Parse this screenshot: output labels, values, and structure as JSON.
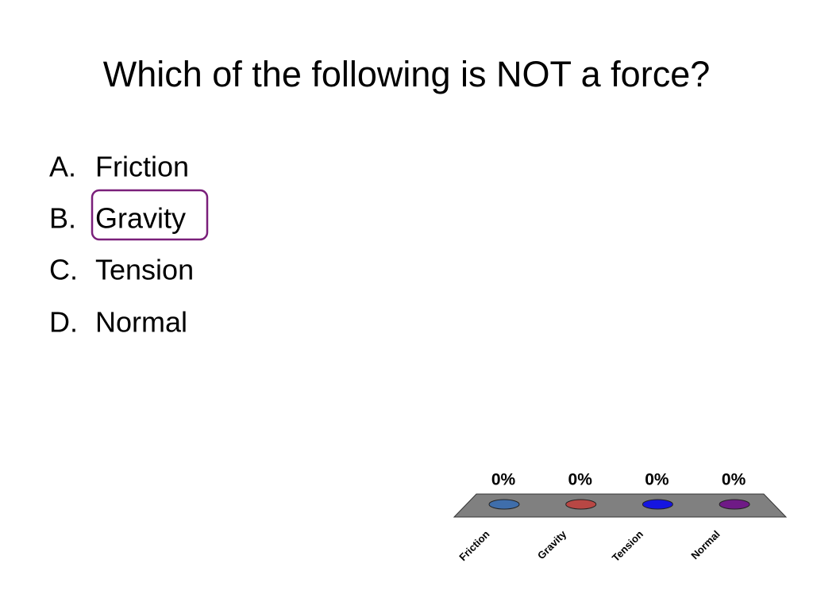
{
  "title": "Which of the following is NOT a force?",
  "options": [
    {
      "letter": "A.",
      "text": "Friction"
    },
    {
      "letter": "B.",
      "text": "Gravity"
    },
    {
      "letter": "C.",
      "text": "Tension"
    },
    {
      "letter": "D.",
      "text": "Normal"
    }
  ],
  "chart_data": {
    "type": "bar",
    "categories": [
      "Friction",
      "Gravity",
      "Tension",
      "Normal"
    ],
    "values": [
      0,
      0,
      0,
      0
    ],
    "value_labels": [
      "0%",
      "0%",
      "0%",
      "0%"
    ],
    "colors": [
      "#3f6eab",
      "#b84744",
      "#1515e0",
      "#6f1a86"
    ]
  }
}
